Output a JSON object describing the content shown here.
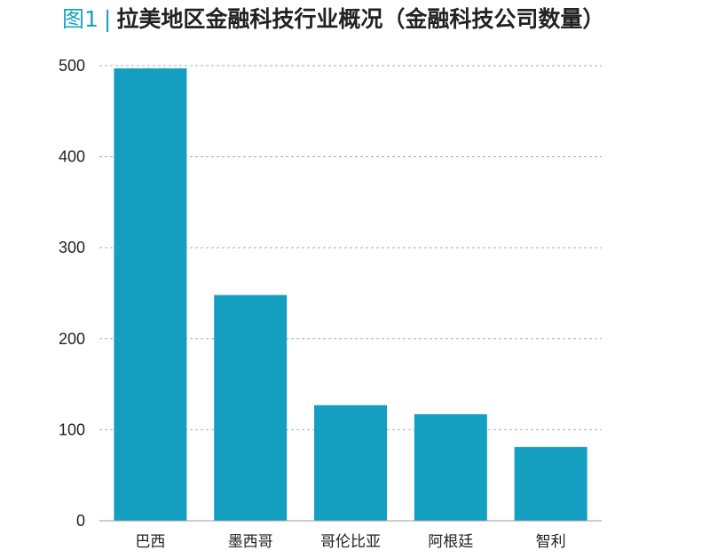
{
  "title": {
    "figure_label": "图1",
    "separator": "|",
    "text": "拉美地区金融科技行业概况（金融科技公司数量）"
  },
  "colors": {
    "bar": "#149ebf",
    "accent": "#18a3c0",
    "grid": "#8fb8c8",
    "axis": "#9a9a9a"
  },
  "chart_data": {
    "type": "bar",
    "title": "拉美地区金融科技行业概况（金融科技公司数量）",
    "xlabel": "",
    "ylabel": "",
    "categories": [
      "巴西",
      "墨西哥",
      "哥伦比亚",
      "阿根廷",
      "智利"
    ],
    "values": [
      497,
      248,
      127,
      117,
      81
    ],
    "ylim": [
      0,
      500
    ],
    "yticks": [
      "0",
      "100",
      "200",
      "300",
      "400",
      "500"
    ],
    "grid": true,
    "legend": "none"
  }
}
